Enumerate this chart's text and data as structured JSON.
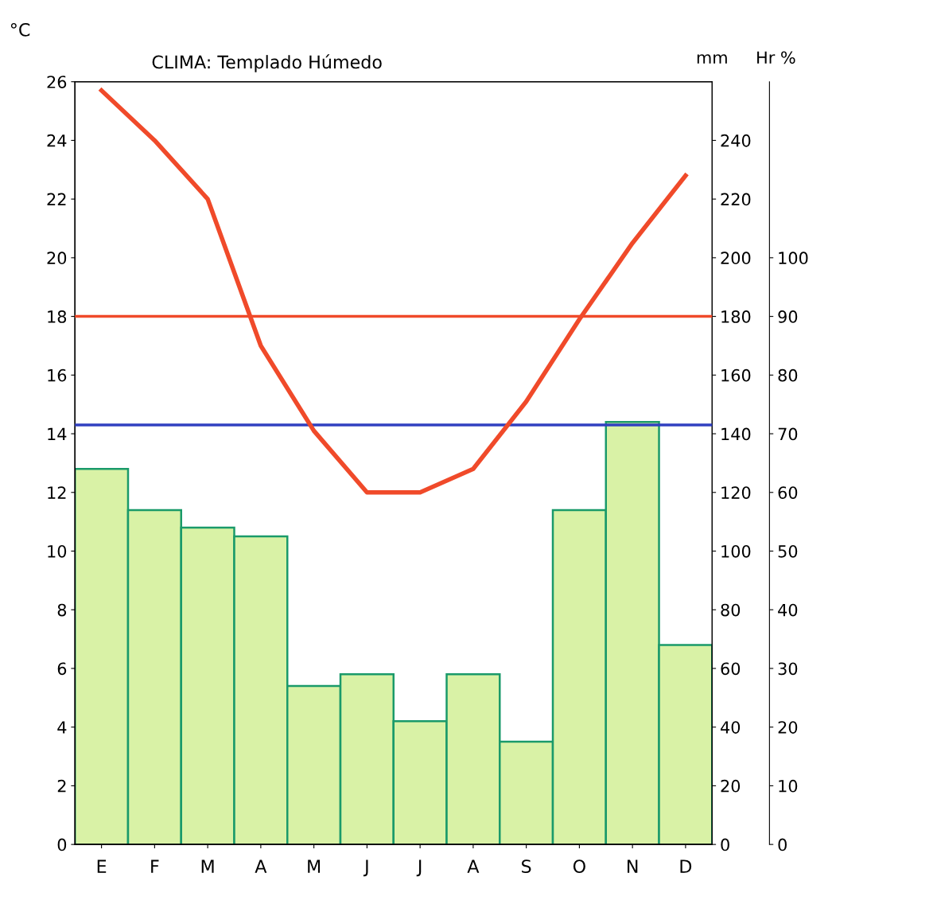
{
  "chart_data": {
    "type": "bar",
    "title": "CLIMA: Templado Húmedo",
    "categories": [
      "E",
      "F",
      "M",
      "A",
      "M",
      "J",
      "J",
      "A",
      "S",
      "O",
      "N",
      "D"
    ],
    "ylabel": "°C",
    "y2label": "mm",
    "y3label": "Hr %",
    "ylim": [
      0,
      26
    ],
    "yticks": [
      0,
      2,
      4,
      6,
      8,
      10,
      12,
      14,
      16,
      18,
      20,
      22,
      24,
      26
    ],
    "y2lim": [
      0,
      260
    ],
    "y2ticks": [
      0,
      20,
      40,
      60,
      80,
      100,
      120,
      140,
      160,
      180,
      200,
      220,
      240
    ],
    "y3lim": [
      0,
      130
    ],
    "y3ticks": [
      0,
      10,
      20,
      30,
      40,
      50,
      60,
      70,
      80,
      90,
      100
    ],
    "series": [
      {
        "axis": "y2",
        "color": "#d9f2a6",
        "values": [
          128,
          114,
          108,
          105,
          54,
          58,
          42,
          58,
          35,
          114,
          144,
          68
        ]
      },
      {
        "type": "line",
        "axis": "y",
        "color": "#f04a2a",
        "marker": "none",
        "line_style": "solid",
        "values": [
          25.7,
          24,
          22,
          17,
          14.1,
          12,
          12,
          12.8,
          15.1,
          17.9,
          20.5,
          22.8
        ]
      }
    ],
    "ref_lines": [
      {
        "axis": "y",
        "value": 18,
        "color": "#f04a2a",
        "line_style": "solid"
      },
      {
        "axis": "y",
        "value": 14.3,
        "color": "#3040c0",
        "line_style": "solid"
      }
    ],
    "grid": false,
    "legend": false
  }
}
